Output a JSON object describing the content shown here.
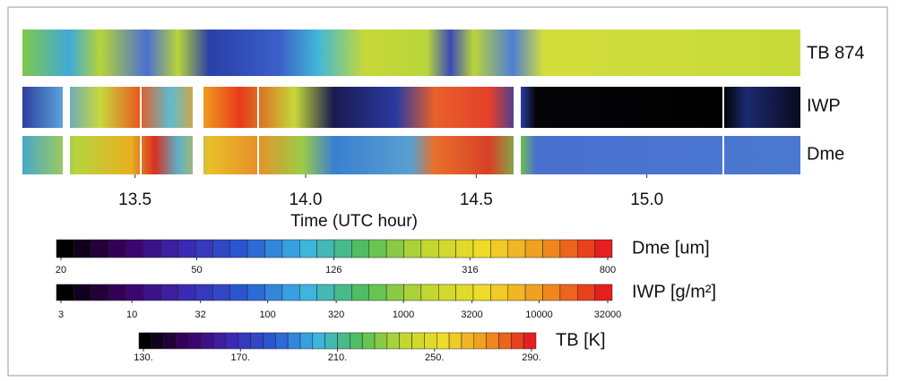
{
  "chart_data": {
    "type": "heatmap",
    "xlabel": "Time (UTC hour)",
    "xlim": [
      13.17,
      15.45
    ],
    "xticks": [
      13.5,
      {
        "value": 14.0,
        "label": "14.0"
      },
      {
        "value": 14.5,
        "label": "14.5"
      },
      {
        "value": 15.0,
        "label": "15.0"
      }
    ],
    "rows": [
      "TB 874",
      "IWP",
      "Dme"
    ],
    "colorbars": [
      {
        "label": "Dme [um]",
        "log": true,
        "lim": [
          20,
          800
        ],
        "ticks": [
          20,
          50,
          126,
          316,
          800
        ]
      },
      {
        "label": "IWP [g/m²]",
        "log": true,
        "lim": [
          3,
          32000
        ],
        "ticks": [
          3,
          10,
          32,
          100,
          320,
          1000,
          3200,
          10000,
          32000
        ]
      },
      {
        "label": "TB [K]",
        "log": false,
        "lim": [
          130,
          290
        ],
        "ticks": [
          {
            "value": 130,
            "label": "130."
          },
          {
            "value": 170,
            "label": "170."
          },
          {
            "value": 210,
            "label": "210."
          },
          {
            "value": 250,
            "label": "250."
          },
          {
            "value": 290,
            "label": "290."
          }
        ]
      }
    ]
  }
}
